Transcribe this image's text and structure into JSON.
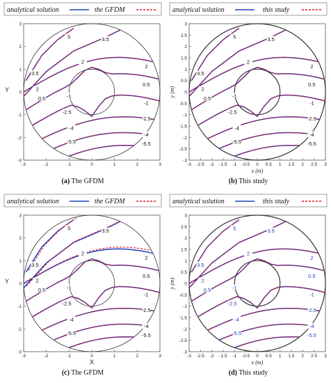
{
  "panels": [
    {
      "id": "a",
      "caption_letter": "(a)",
      "caption_text": " The GFDM",
      "legend": {
        "analytic": "analytical solution",
        "numeric": "the GFDM"
      },
      "style": "gfdm",
      "xlabel": "",
      "ylabel": "Y",
      "x_ticks": [
        "-3",
        "-2",
        "-1",
        "0",
        "1",
        "2",
        "3"
      ],
      "y_ticks": [
        "3",
        "2",
        "1",
        "0",
        "-1",
        "-2",
        "-3"
      ],
      "contour_labels": [
        "5",
        "3.5",
        "3.5",
        "2",
        "2",
        "0.5",
        "0.5",
        "2",
        "-1",
        "-1",
        "-2.5",
        "-2.5",
        "-4",
        "-4",
        "-5.5",
        "-5.5"
      ],
      "deviated": false
    },
    {
      "id": "b",
      "caption_letter": "(b)",
      "caption_text": " This study",
      "legend": {
        "analytic": "analytical solution",
        "numeric": "this study"
      },
      "style": "study",
      "xlabel": "x (m)",
      "ylabel": "y (m)",
      "x_ticks": [
        "-3",
        "-2.5",
        "-2",
        "-1.5",
        "-1",
        "-0.5",
        "0",
        "0.5",
        "1",
        "1.5",
        "2",
        "2.5",
        "3"
      ],
      "y_ticks": [
        "3",
        "2.5",
        "2",
        "1.5",
        "1",
        "0.5",
        "0",
        "-0.5",
        "-1",
        "-1.5",
        "-2",
        "-2.5",
        "-3"
      ],
      "contour_labels": [
        "5",
        "3.5",
        "3.5",
        "2",
        "2",
        "0.5",
        "0.5",
        "2",
        "-1",
        "-1",
        "-2.5",
        "-2.5",
        "-4",
        "-4",
        "-5.5",
        "-5.5"
      ],
      "deviated": false
    },
    {
      "id": "c",
      "caption_letter": "(c)",
      "caption_text": " The GFDM",
      "legend": {
        "analytic": "analytical solution",
        "numeric": "the GFDM"
      },
      "style": "gfdm",
      "xlabel": "X",
      "ylabel": "Y",
      "x_ticks": [
        "-3",
        "-2",
        "-1",
        "0",
        "1",
        "2",
        "3"
      ],
      "y_ticks": [
        "3",
        "2",
        "1",
        "0",
        "-1",
        "-2",
        "-3"
      ],
      "contour_labels": [
        "5",
        "3.5",
        "3.5",
        "2",
        "2",
        "0.5",
        "0.5",
        "2",
        "-1",
        "-1",
        "-2.5",
        "-2.5",
        "-4",
        "-4",
        "-5.5",
        "-5.5"
      ],
      "deviated": true
    },
    {
      "id": "d",
      "caption_letter": "(d)",
      "caption_text": " This study",
      "legend": {
        "analytic": "analytical solution",
        "numeric": "this study"
      },
      "style": "study",
      "xlabel": "x (m)",
      "ylabel": "y (m)",
      "x_ticks": [
        "-3",
        "-2.5",
        "-2",
        "-1.5",
        "-1",
        "-0.5",
        "0",
        "0.5",
        "1",
        "1.5",
        "2",
        "2.5",
        "3"
      ],
      "y_ticks": [
        "3",
        "2.5",
        "2",
        "1.5",
        "1",
        "0.5",
        "0",
        "-0.5",
        "-1",
        "-1.5",
        "-2",
        "-2.5",
        "-3"
      ],
      "contour_labels": [
        "5",
        "3.5",
        "3.5",
        "2",
        "2",
        "0.5",
        "0.5",
        "2",
        "-1",
        "-1",
        "-2.5",
        "-2.5",
        "-4",
        "-4",
        "-5.5",
        "-5.5"
      ],
      "deviated": false
    }
  ],
  "colors": {
    "analytic": "#1f3fbf",
    "numeric": "#e0141e",
    "frame": "#555555",
    "circle": "#333333"
  }
}
